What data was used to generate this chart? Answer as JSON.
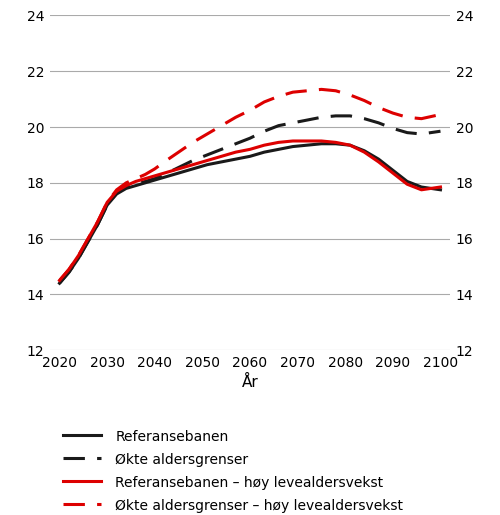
{
  "years": [
    2020,
    2022,
    2024,
    2026,
    2028,
    2030,
    2032,
    2034,
    2036,
    2038,
    2040,
    2042,
    2045,
    2048,
    2051,
    2054,
    2057,
    2060,
    2063,
    2066,
    2069,
    2072,
    2075,
    2078,
    2081,
    2084,
    2087,
    2090,
    2093,
    2096,
    2100
  ],
  "ref": [
    14.4,
    14.8,
    15.3,
    15.9,
    16.5,
    17.2,
    17.6,
    17.8,
    17.9,
    18.0,
    18.1,
    18.2,
    18.35,
    18.5,
    18.65,
    18.75,
    18.85,
    18.95,
    19.1,
    19.2,
    19.3,
    19.35,
    19.4,
    19.4,
    19.35,
    19.15,
    18.85,
    18.45,
    18.05,
    17.85,
    17.75
  ],
  "okte_ref": [
    14.4,
    14.8,
    15.3,
    15.9,
    16.5,
    17.2,
    17.65,
    17.85,
    17.95,
    18.05,
    18.15,
    18.3,
    18.55,
    18.8,
    19.0,
    19.2,
    19.4,
    19.6,
    19.85,
    20.05,
    20.15,
    20.25,
    20.35,
    20.4,
    20.4,
    20.3,
    20.15,
    19.95,
    19.8,
    19.75,
    19.85
  ],
  "ref_hoy": [
    14.5,
    14.9,
    15.4,
    16.0,
    16.6,
    17.3,
    17.7,
    17.9,
    18.05,
    18.15,
    18.25,
    18.35,
    18.5,
    18.65,
    18.8,
    18.95,
    19.1,
    19.2,
    19.35,
    19.45,
    19.5,
    19.5,
    19.5,
    19.45,
    19.35,
    19.1,
    18.75,
    18.35,
    17.95,
    17.75,
    17.85
  ],
  "okte_hoy": [
    14.5,
    14.9,
    15.4,
    16.0,
    16.6,
    17.3,
    17.75,
    18.0,
    18.15,
    18.3,
    18.5,
    18.75,
    19.1,
    19.45,
    19.75,
    20.05,
    20.35,
    20.6,
    20.9,
    21.1,
    21.25,
    21.3,
    21.35,
    21.3,
    21.15,
    20.95,
    20.7,
    20.5,
    20.35,
    20.3,
    20.45
  ],
  "xlim": [
    2018,
    2102
  ],
  "ylim": [
    12,
    24
  ],
  "yticks": [
    12,
    14,
    16,
    18,
    20,
    22,
    24
  ],
  "xticks": [
    2020,
    2030,
    2040,
    2050,
    2060,
    2070,
    2080,
    2090,
    2100
  ],
  "xlabel": "År",
  "color_black": "#1a1a1a",
  "color_red": "#dd0000",
  "legend_labels": [
    "Referansebanen",
    "Økte aldersgrenser",
    "Referansebanen – høy levealdersvekst",
    "Økte aldersgrenser – høy levealdersvekst"
  ],
  "background_color": "#ffffff",
  "grid_color": "#aaaaaa",
  "linewidth": 2.2,
  "legend_fontsize": 10,
  "tick_fontsize": 10,
  "xlabel_fontsize": 11
}
